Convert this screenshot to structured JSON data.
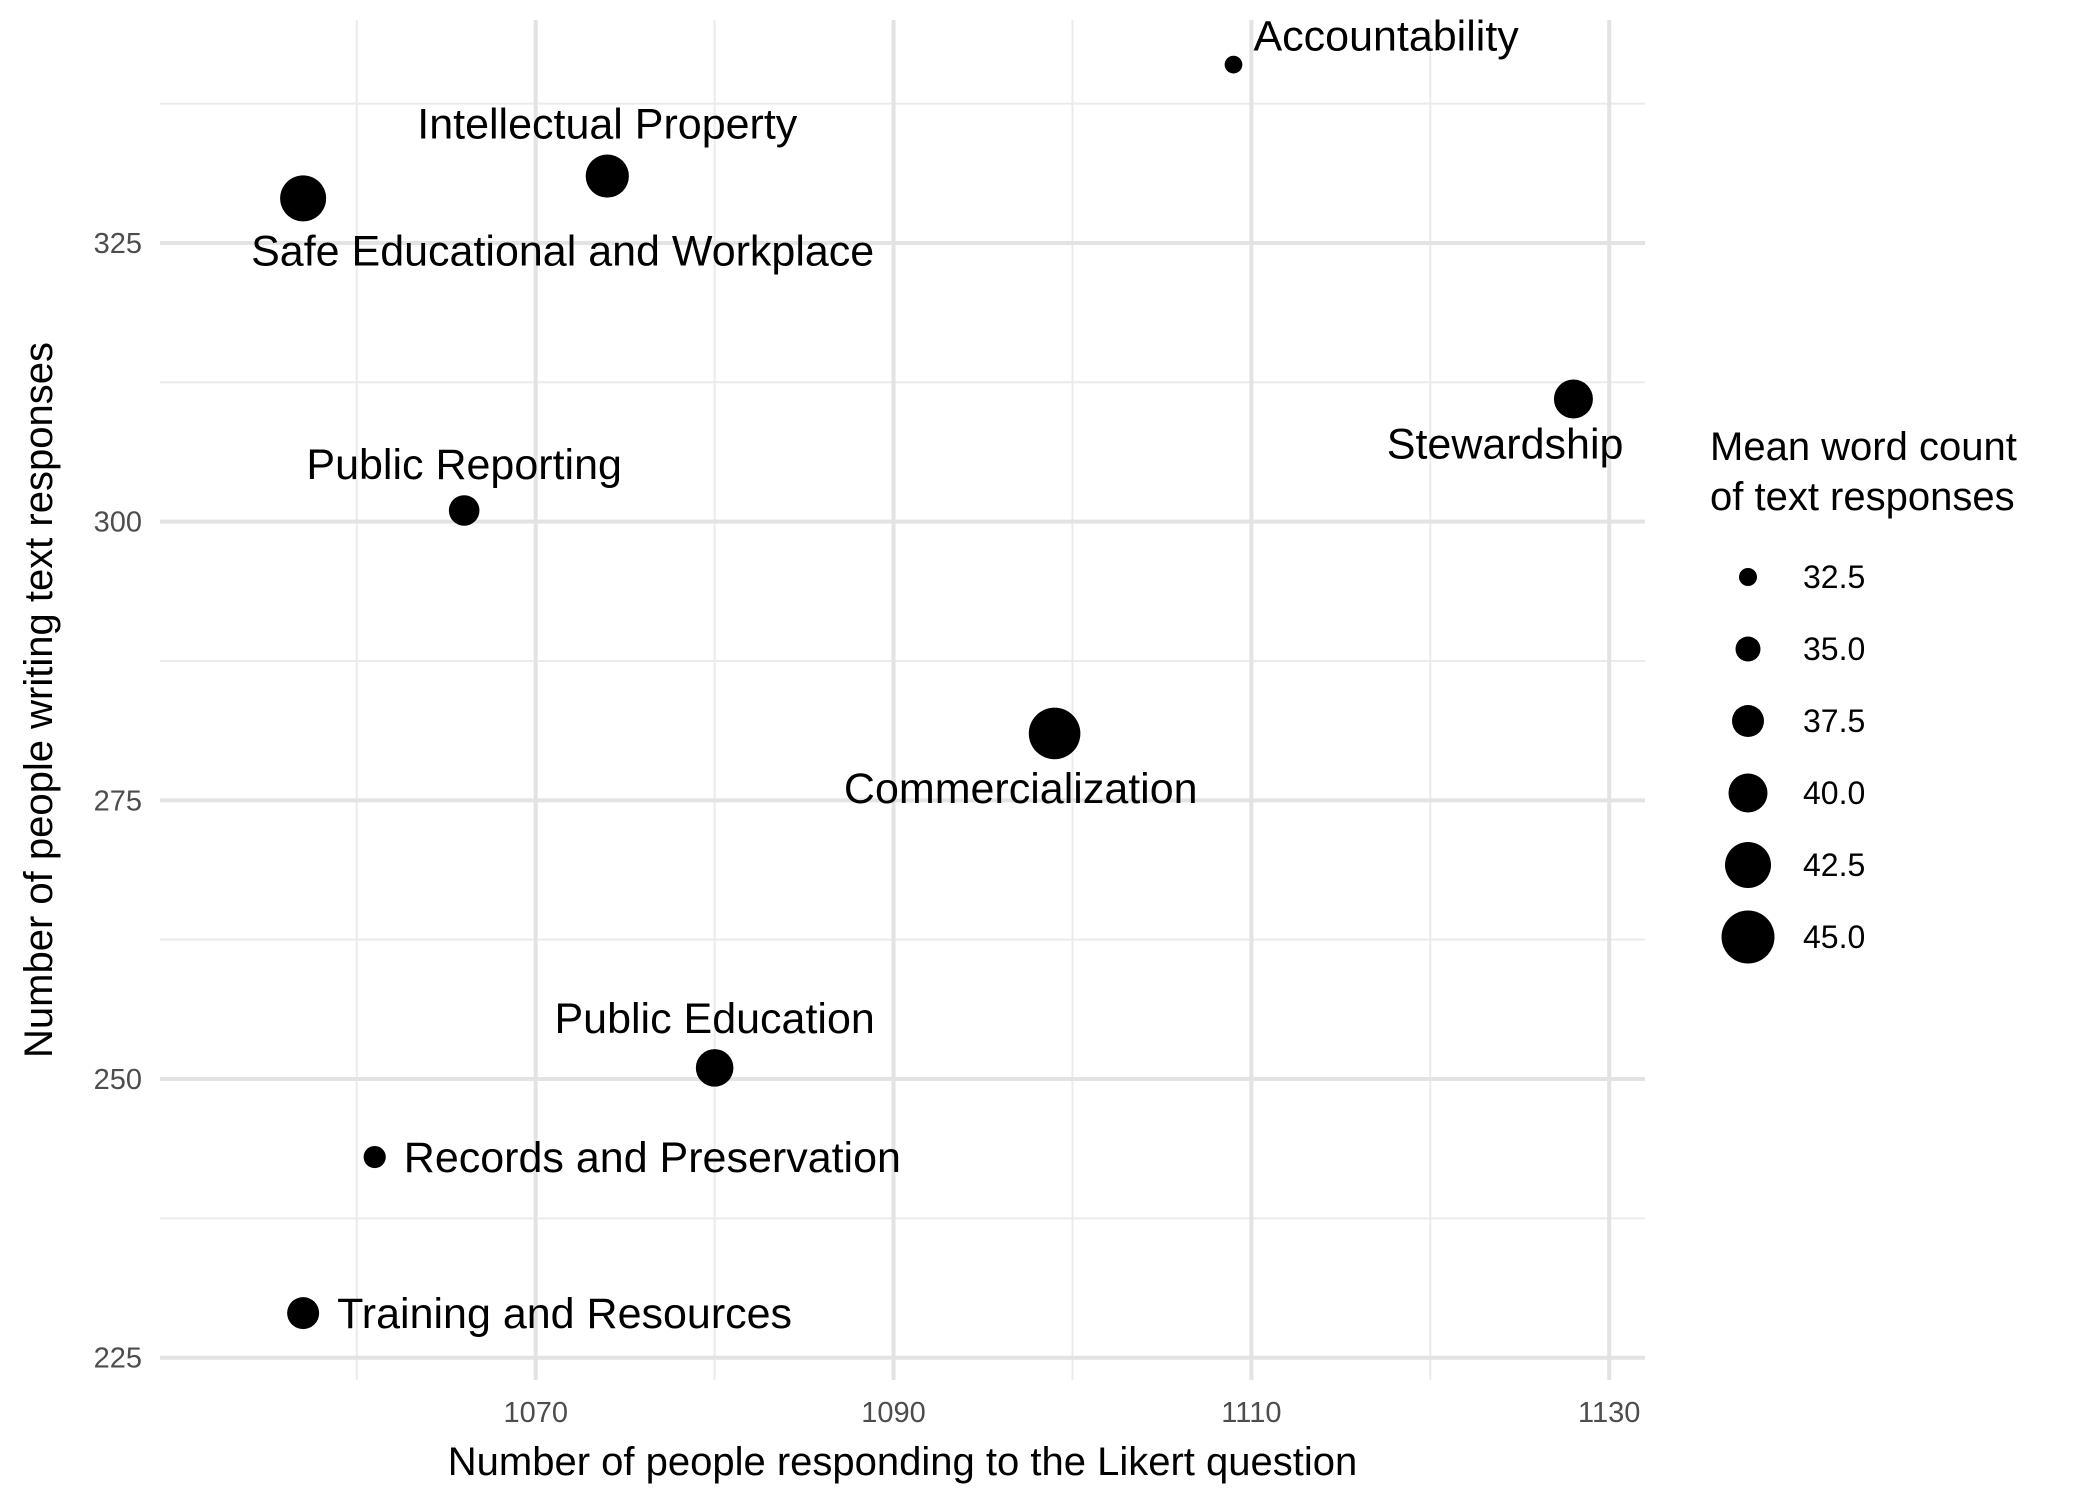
{
  "chart_data": {
    "type": "scatter",
    "title": "",
    "xlabel": "Number of people responding to the Likert question",
    "ylabel": "Number of people writing text responses",
    "xlim": [
      1049,
      1132
    ],
    "ylim": [
      223,
      345
    ],
    "x_ticks": [
      1070,
      1090,
      1110,
      1130
    ],
    "y_ticks": [
      225,
      250,
      275,
      300,
      325
    ],
    "grid": true,
    "legend_position": "right",
    "size_legend": {
      "title_lines": [
        "Mean word count",
        "of text responses"
      ],
      "values": [
        32.5,
        35.0,
        37.5,
        40.0,
        42.5,
        45.0
      ],
      "labels": [
        "32.5",
        "35.0",
        "37.5",
        "40.0",
        "42.5",
        "45.0"
      ]
    },
    "points": [
      {
        "label": "Accountability",
        "x": 1109,
        "y": 341,
        "size": 32.4,
        "label_pos": "above-right"
      },
      {
        "label": "Intellectual Property",
        "x": 1074,
        "y": 331,
        "size": 41.5,
        "label_pos": "above"
      },
      {
        "label": "Safe Educational and Workplace",
        "x": 1057,
        "y": 329,
        "size": 42.5,
        "label_pos": "below-right"
      },
      {
        "label": "Stewardship",
        "x": 1128,
        "y": 311,
        "size": 40.0,
        "label_pos": "below-left"
      },
      {
        "label": "Public Reporting",
        "x": 1066,
        "y": 301,
        "size": 37.0,
        "label_pos": "above"
      },
      {
        "label": "Commercialization",
        "x": 1099,
        "y": 281,
        "size": 44.5,
        "label_pos": "below-left"
      },
      {
        "label": "Public Education",
        "x": 1080,
        "y": 251,
        "size": 39.5,
        "label_pos": "above"
      },
      {
        "label": "Records and Preservation",
        "x": 1061,
        "y": 243,
        "size": 34.0,
        "label_pos": "right"
      },
      {
        "label": "Training and Resources",
        "x": 1057,
        "y": 229,
        "size": 37.5,
        "label_pos": "right"
      }
    ]
  }
}
